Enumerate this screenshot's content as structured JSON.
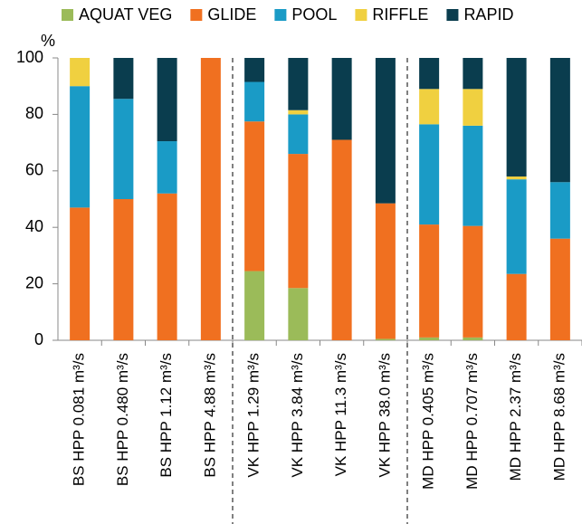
{
  "chart_data": {
    "type": "stacked_bar",
    "y_label": "%",
    "categories": [
      "BS HPP 0.081 m³/s",
      "BS HPP 0.480 m³/s",
      "BS HPP 1.12 m³/s",
      "BS HPP 4.88 m³/s",
      "VK HPP 1.29 m³/s",
      "VK HPP 3.84 m³/s",
      "VK HPP 11.3 m³/s",
      "VK HPP 38.0 m³/s",
      "MD HPP 0.405 m³/s",
      "MD HPP 0.707 m³/s",
      "MD HPP 2.37 m³/s",
      "MD HPP 8.68 m³/s"
    ],
    "series": [
      {
        "name": "AQUAT VEG",
        "color": "#9bbb59",
        "values": [
          0,
          0,
          0,
          0,
          24.5,
          18.5,
          0,
          0.5,
          1,
          1,
          0,
          0
        ]
      },
      {
        "name": "GLIDE",
        "color": "#f07020",
        "values": [
          47,
          50,
          52,
          100,
          53,
          47.5,
          71,
          48,
          40,
          39.5,
          23.5,
          36
        ]
      },
      {
        "name": "POOL",
        "color": "#1a9bc6",
        "values": [
          43,
          35.5,
          18.5,
          0,
          14,
          14,
          0,
          0,
          35.5,
          35.5,
          33.5,
          20
        ]
      },
      {
        "name": "RIFFLE",
        "color": "#f0d040",
        "values": [
          10,
          0,
          0,
          0,
          0,
          1.5,
          0,
          0,
          12.5,
          13,
          1,
          0
        ]
      },
      {
        "name": "RAPID",
        "color": "#0a3d4e",
        "values": [
          0,
          14.5,
          29.5,
          0,
          8.5,
          18.5,
          29,
          51.5,
          11,
          11,
          42,
          44
        ]
      }
    ],
    "ylim": [
      0,
      100
    ],
    "yticks": [
      0,
      20,
      40,
      60,
      80,
      100
    ],
    "legend": "top"
  }
}
